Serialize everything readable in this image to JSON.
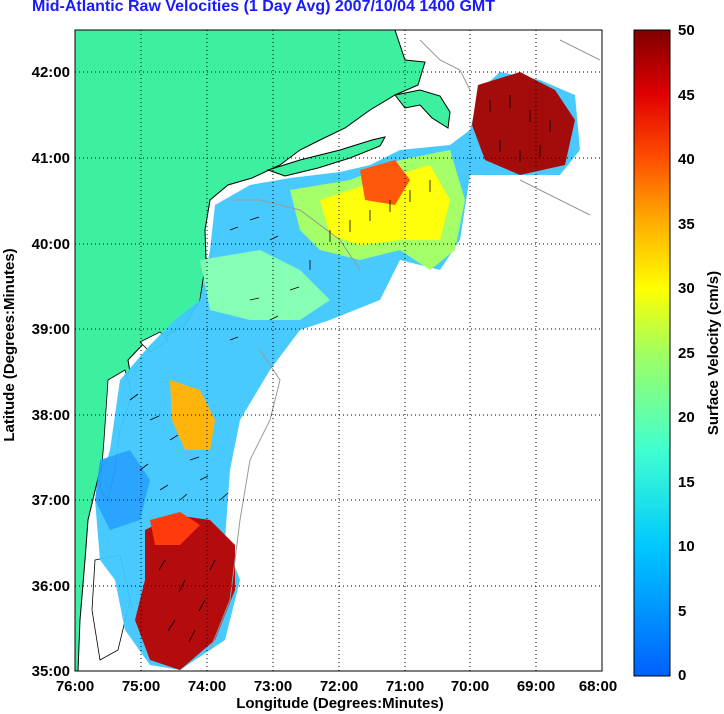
{
  "title": "Mid-Atlantic Raw Velocities (1 Day Avg) 2007/10/04 1400 GMT",
  "x_axis": {
    "label": "Longitude (Degrees:Minutes)",
    "ticks": [
      "76:00",
      "75:00",
      "74:00",
      "73:00",
      "72:00",
      "71:00",
      "70:00",
      "69:00",
      "68:00"
    ]
  },
  "y_axis": {
    "label": "Latitude (Degrees:Minutes)",
    "ticks": [
      "42:00",
      "41:00",
      "40:00",
      "39:00",
      "38:00",
      "37:00",
      "36:00",
      "35:00"
    ]
  },
  "colorbar": {
    "label": "Surface Velocity (cm/s)",
    "ticks": [
      "50",
      "45",
      "40",
      "35",
      "30",
      "25",
      "20",
      "15",
      "10",
      "5",
      "0"
    ],
    "range": [
      0,
      50
    ]
  },
  "colors": {
    "land": "#3cf0a0",
    "ocean": "#ffffff",
    "grid": "#000000",
    "title": "#1a1aff"
  }
}
